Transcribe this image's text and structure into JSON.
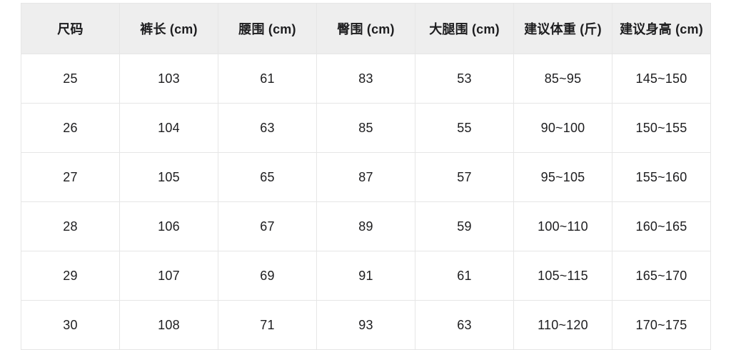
{
  "colors": {
    "header_bg": "#eeeeee",
    "border": "#e6e6e6",
    "text": "#1d1d1f",
    "body_bg": "#ffffff"
  },
  "chart_data": {
    "type": "table",
    "title": "",
    "columns": [
      {
        "key": "size",
        "label": "尺码"
      },
      {
        "key": "pants-length",
        "label": "裤长 (cm)"
      },
      {
        "key": "waist",
        "label": "腰围 (cm)"
      },
      {
        "key": "hip",
        "label": "臀围 (cm)"
      },
      {
        "key": "thigh",
        "label": "大腿围 (cm)"
      },
      {
        "key": "weight",
        "label": "建议体重 (斤)"
      },
      {
        "key": "height",
        "label": "建议身高 (cm)"
      }
    ],
    "rows": [
      [
        "25",
        "103",
        "61",
        "83",
        "53",
        "85~95",
        "145~150"
      ],
      [
        "26",
        "104",
        "63",
        "85",
        "55",
        "90~100",
        "150~155"
      ],
      [
        "27",
        "105",
        "65",
        "87",
        "57",
        "95~105",
        "155~160"
      ],
      [
        "28",
        "106",
        "67",
        "89",
        "59",
        "100~110",
        "160~165"
      ],
      [
        "29",
        "107",
        "69",
        "91",
        "61",
        "105~115",
        "165~170"
      ],
      [
        "30",
        "108",
        "71",
        "93",
        "63",
        "110~120",
        "170~175"
      ]
    ]
  }
}
